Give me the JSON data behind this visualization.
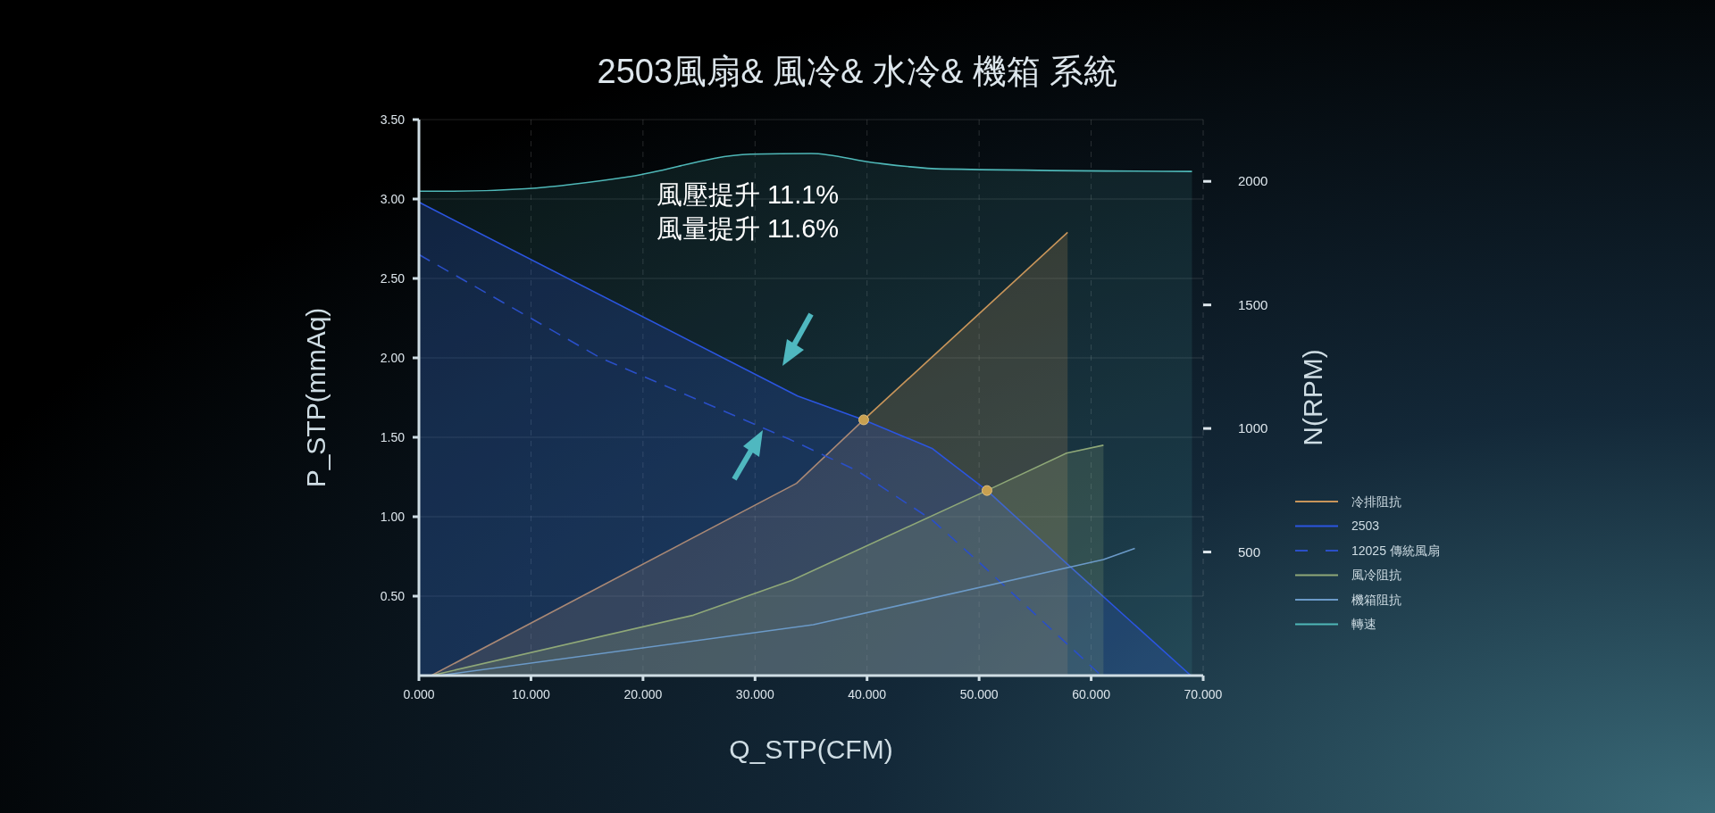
{
  "chart_data": {
    "type": "area",
    "title": "2503風扇& 風冷& 水冷& 機箱 系統",
    "xlabel": "Q_STP(CFM)",
    "ylabel": "P_STP(mmAq)",
    "y2label": "N(RPM)",
    "annotations": [
      "風壓提升 11.1%",
      "風量提升 11.6%"
    ],
    "xlim": [
      0,
      70
    ],
    "xticks": [
      {
        "value": 0,
        "label": "0.000"
      },
      {
        "value": 10,
        "label": "10.000"
      },
      {
        "value": 20,
        "label": "20.000"
      },
      {
        "value": 30,
        "label": "30.000"
      },
      {
        "value": 40,
        "label": "40.000"
      },
      {
        "value": 50,
        "label": "50.000"
      },
      {
        "value": 60,
        "label": "60.000"
      },
      {
        "value": 70,
        "label": "70.000"
      }
    ],
    "ylim": [
      0,
      3.5
    ],
    "yticks": [
      {
        "value": 0.5,
        "label": "0.50"
      },
      {
        "value": 1,
        "label": "1.00"
      },
      {
        "value": 1.5,
        "label": "1.50"
      },
      {
        "value": 2,
        "label": "2.00"
      },
      {
        "value": 2.5,
        "label": "2.50"
      },
      {
        "value": 3,
        "label": "3.00"
      },
      {
        "value": 3.5,
        "label": "3.50"
      }
    ],
    "y2lim": [
      0,
      2250
    ],
    "y2ticks": [
      500,
      1000,
      1500,
      2000
    ],
    "grid": true,
    "legend": "right",
    "marker": "none",
    "line_style": "solid",
    "series": [
      {
        "name": "冷排阻抗",
        "color": "#c8955a",
        "x": [
          1.1,
          33.7,
          39.7,
          57.9
        ],
        "values": [
          0,
          1.21,
          1.61,
          2.79
        ]
      },
      {
        "name": "2503",
        "color": "#2b55e0",
        "x": [
          0,
          33.8,
          39.7,
          45.8,
          50.7,
          57.9,
          68.9
        ],
        "values": [
          2.98,
          1.76,
          1.61,
          1.43,
          1.165,
          0.7,
          0
        ]
      },
      {
        "name": "12025 傳統風扇",
        "type": "line",
        "line_style": "dashed",
        "color": "#2a4fc8",
        "x": [
          0,
          16.2,
          33,
          39.1,
          45.8,
          50.2,
          60.9
        ],
        "values": [
          2.65,
          2.0,
          1.49,
          1.29,
          0.98,
          0.7,
          0
        ]
      },
      {
        "name": "風冷阻抗",
        "color": "#8fa878",
        "x": [
          1.1,
          24.5,
          33.3,
          50.7,
          57.8,
          61.1
        ],
        "values": [
          0,
          0.38,
          0.6,
          1.165,
          1.4,
          1.45
        ]
      },
      {
        "name": "機箱阻抗",
        "type": "line",
        "color": "#6b9ac8",
        "x": [
          1.8,
          35.2,
          61.1,
          63.9
        ],
        "values": [
          0,
          0.32,
          0.73,
          0.8
        ]
      },
      {
        "name": "轉速",
        "axis": "y2",
        "color": "#4fb8b8",
        "x": [
          0,
          3,
          9.5,
          18.9,
          29.6,
          35,
          40.7,
          46.8,
          69
        ],
        "values": [
          1960,
          1960,
          1970,
          2020,
          2110,
          2113,
          2075,
          2050,
          2040
        ]
      },
      {
        "type": "scatter",
        "marker": "circle",
        "color": "#c8a050",
        "x": [
          39.7,
          50.7
        ],
        "values": [
          1.61,
          1.165
        ]
      }
    ]
  }
}
